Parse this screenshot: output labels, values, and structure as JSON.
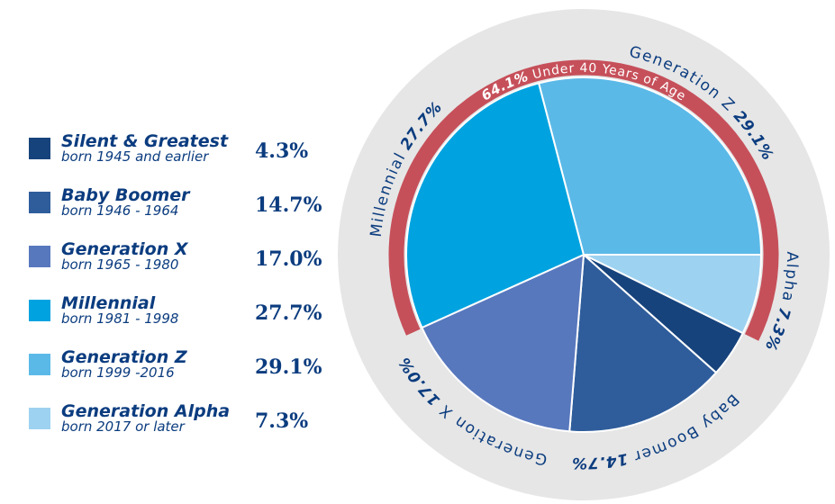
{
  "chart_data": {
    "type": "pie",
    "categories": [
      "Silent & Greatest",
      "Baby Boomer",
      "Generation X",
      "Millennial",
      "Generation Z",
      "Generation Alpha"
    ],
    "subtitles": [
      "born 1945 and earlier",
      "born 1946 - 1964",
      "born 1965 - 1980",
      "born 1981 - 1998",
      "born 1999 -2016",
      "born 2017 or later"
    ],
    "values": [
      4.3,
      14.7,
      17.0,
      27.7,
      29.1,
      7.3
    ],
    "value_labels": [
      "4.3%",
      "14.7%",
      "17.0%",
      "27.7%",
      "29.1%",
      "7.3%"
    ],
    "ring_labels": [
      null,
      "Baby Boomer",
      "Generation X",
      "Millennial",
      "Generation Z",
      "Alpha"
    ],
    "colors": [
      "#17437c",
      "#2f5d9b",
      "#5878bd",
      "#00a3e0",
      "#5bb9e8",
      "#9ed2f1"
    ],
    "annotation": {
      "value": 64.1,
      "value_label": "64.1%",
      "text": "Under 40 Years of Age",
      "color": "#c6505a"
    }
  }
}
